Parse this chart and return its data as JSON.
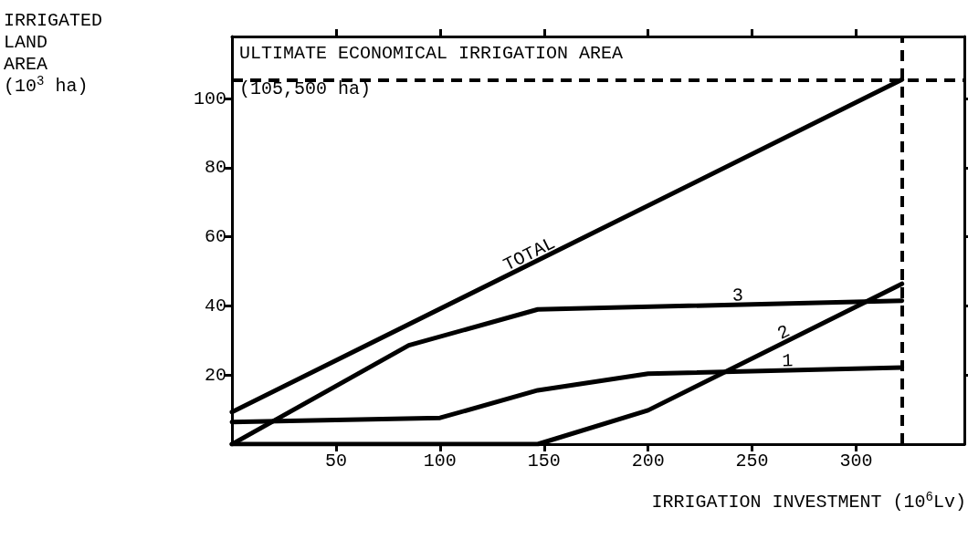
{
  "chart_data": {
    "type": "line",
    "xlabel": "IRRIGATION INVESTMENT (10$^{6}$Lv)",
    "ylabel": "IRRIGATED\nLAND\nAREA\n(10$^{3}$ ha)",
    "series": [
      {
        "name": "TOTAL",
        "color": "#000000",
        "x": [
          0,
          322
        ],
        "values": [
          9.3,
          105.5
        ]
      },
      {
        "name": "3",
        "color": "#000000",
        "x": [
          0,
          85,
          147,
          322
        ],
        "values": [
          0,
          28.6,
          39,
          41.5
        ]
      },
      {
        "name": "2",
        "color": "#000000",
        "x": [
          0,
          147,
          200,
          322
        ],
        "values": [
          0,
          0,
          9.8,
          46.4
        ]
      },
      {
        "name": "1",
        "color": "#000000",
        "x": [
          0,
          100,
          147,
          200,
          322
        ],
        "values": [
          6.4,
          7.6,
          15.6,
          20.4,
          22.2
        ]
      }
    ],
    "xlim": [
      0,
      352
    ],
    "xticks": [
      50,
      100,
      150,
      200,
      250,
      300
    ],
    "ylim": [
      0,
      118
    ],
    "yticks": [
      20,
      40,
      60,
      80,
      100
    ],
    "ref_lines": [
      {
        "axis": "y",
        "value": 105.5,
        "label": null,
        "color": "#000000",
        "line_style": "dashed"
      },
      {
        "axis": "x",
        "value": 322,
        "label": null,
        "color": "#000000",
        "line_style": "dashed"
      }
    ],
    "annotations": [
      "ULTIMATE ECONOMICAL IRRIGATION AREA",
      "(105,500 ha)"
    ],
    "grid": false,
    "legend": false,
    "marker": "none",
    "line_style": "solid"
  }
}
